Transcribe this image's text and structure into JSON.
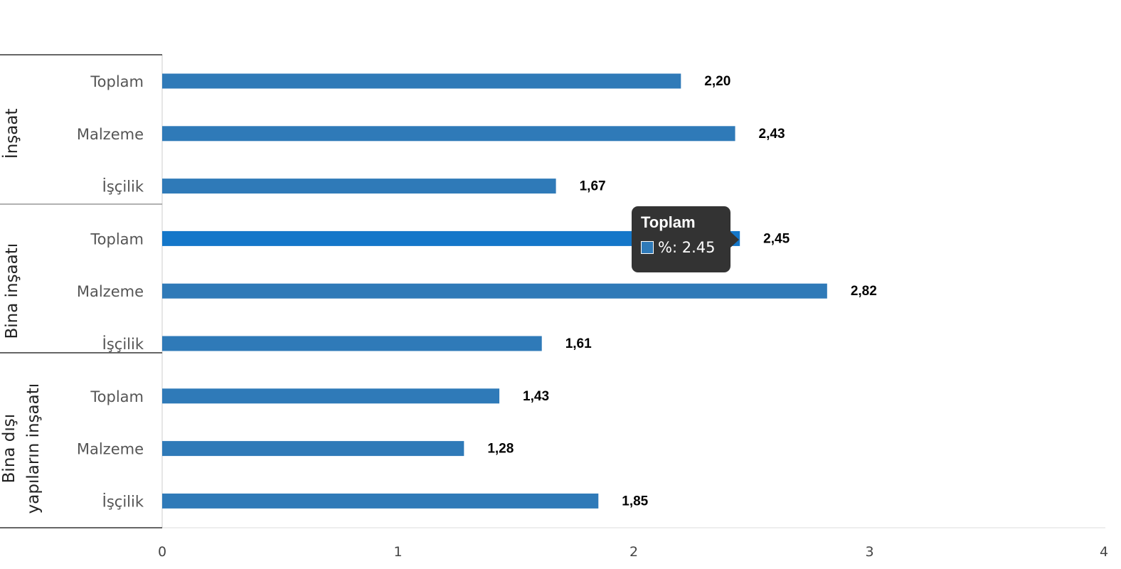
{
  "chart_data": {
    "type": "bar",
    "orientation": "horizontal",
    "groups": [
      {
        "name": "İnşaat",
        "name_lines": [
          "İnşaat"
        ],
        "categories": [
          "Toplam",
          "Malzeme",
          "İşçilik"
        ],
        "values": [
          2.2,
          2.43,
          1.67
        ],
        "labels": [
          "2,20",
          "2,43",
          "1,67"
        ]
      },
      {
        "name": "Bina inşaatı",
        "name_lines": [
          "Bina inşaatı"
        ],
        "categories": [
          "Toplam",
          "Malzeme",
          "İşçilik"
        ],
        "values": [
          2.45,
          2.82,
          1.61
        ],
        "labels": [
          "2,45",
          "2,82",
          "1,61"
        ]
      },
      {
        "name": "Bina dışı yapıların inşaatı",
        "name_lines": [
          "Bina dışı",
          "yapıların inşaatı"
        ],
        "categories": [
          "Toplam",
          "Malzeme",
          "İşçilik"
        ],
        "values": [
          1.43,
          1.28,
          1.85
        ],
        "labels": [
          "1,43",
          "1,28",
          "1,85"
        ]
      }
    ],
    "xlim": [
      0,
      4
    ],
    "xticks": [
      "0",
      "1",
      "2",
      "3",
      "4"
    ],
    "colors": {
      "bar": "#2f7ab8",
      "bar_hover": "#1477c9"
    },
    "highlighted": {
      "group": 1,
      "index": 0
    }
  },
  "tooltip": {
    "title": "Toplam",
    "value_text": "%: 2.45"
  }
}
